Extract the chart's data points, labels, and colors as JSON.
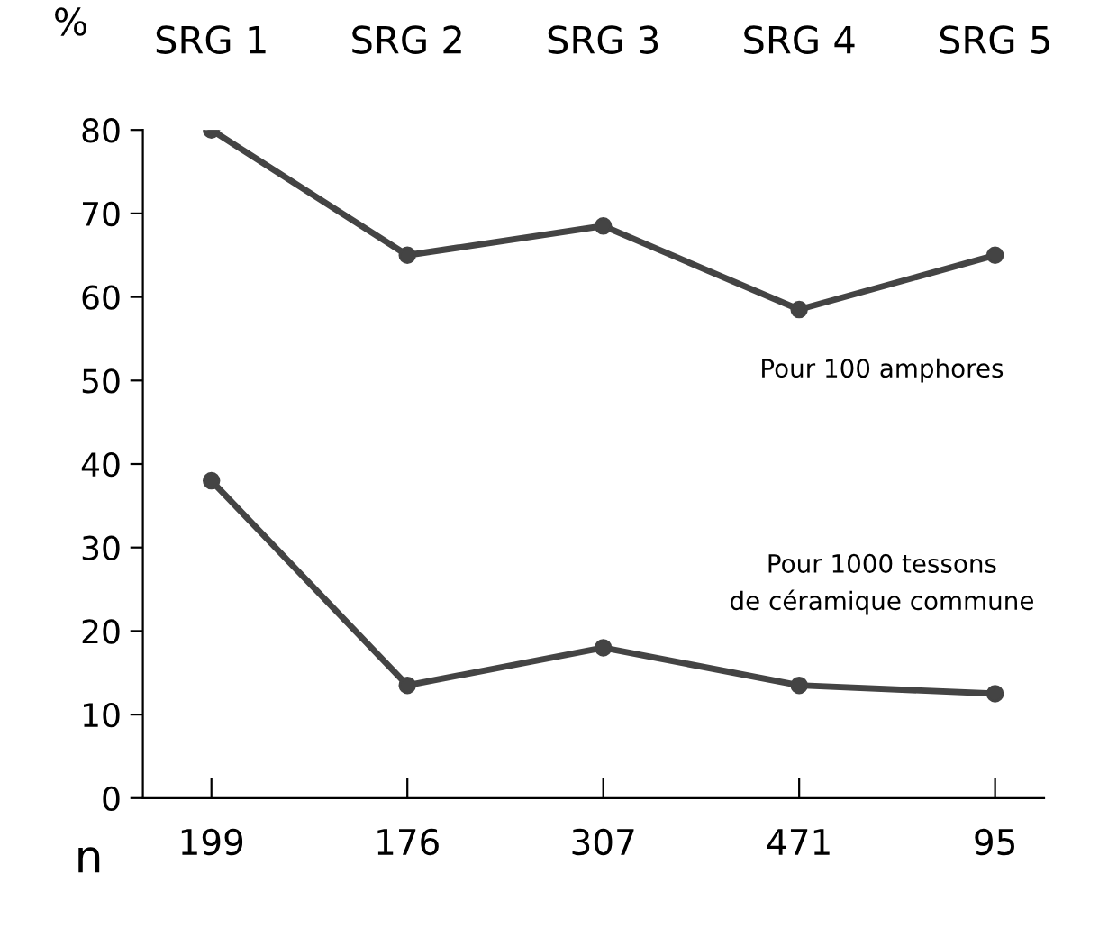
{
  "chart_data": {
    "type": "line",
    "ylabel": "%",
    "xlabel": "n",
    "categories": [
      "199",
      "176",
      "307",
      "471",
      "95"
    ],
    "series": [
      {
        "color": "#444444",
        "values": [
          80,
          65,
          68.5,
          58.5,
          65
        ]
      },
      {
        "color": "#444444",
        "values": [
          38,
          13.5,
          18,
          13.5,
          12.5
        ]
      }
    ],
    "ylim": [
      0,
      80
    ],
    "yticks": [
      0,
      10,
      20,
      30,
      40,
      50,
      60,
      70,
      80
    ],
    "annotations": [
      "SRG 1",
      "SRG 2",
      "SRG 3",
      "SRG 4",
      "SRG 5",
      "Pour 100 amphores",
      "Pour 1000 tessons\nde céramique commune"
    ],
    "grid": false,
    "legend": false,
    "marker": "circle",
    "line_style": "solid"
  }
}
